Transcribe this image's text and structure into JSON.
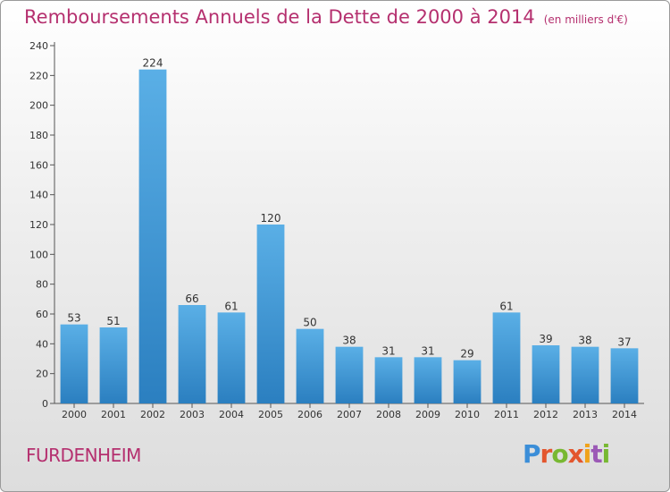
{
  "header": {
    "title": "Remboursements Annuels de la Dette de 2000 à 2014",
    "unit": "(en milliers d'€)"
  },
  "footer": {
    "commune": "FURDENHEIM",
    "brand": "Proxiti"
  },
  "colors": {
    "accent": "#b5306f",
    "bar_top": "#5aafe6",
    "bar_bottom": "#2b7fc0"
  },
  "chart_data": {
    "type": "bar",
    "title": "Remboursements Annuels de la Dette de 2000 à 2014",
    "categories": [
      "2000",
      "2001",
      "2002",
      "2003",
      "2004",
      "2005",
      "2006",
      "2007",
      "2008",
      "2009",
      "2010",
      "2011",
      "2012",
      "2013",
      "2014"
    ],
    "values": [
      53,
      51,
      224,
      66,
      61,
      120,
      50,
      38,
      31,
      31,
      29,
      61,
      39,
      38,
      37
    ],
    "ylim": [
      0,
      240
    ],
    "yticks": [
      0,
      20,
      40,
      60,
      80,
      100,
      120,
      140,
      160,
      180,
      200,
      220,
      240
    ],
    "xlabel": "",
    "ylabel": "",
    "grid": false,
    "data_labels": true
  }
}
